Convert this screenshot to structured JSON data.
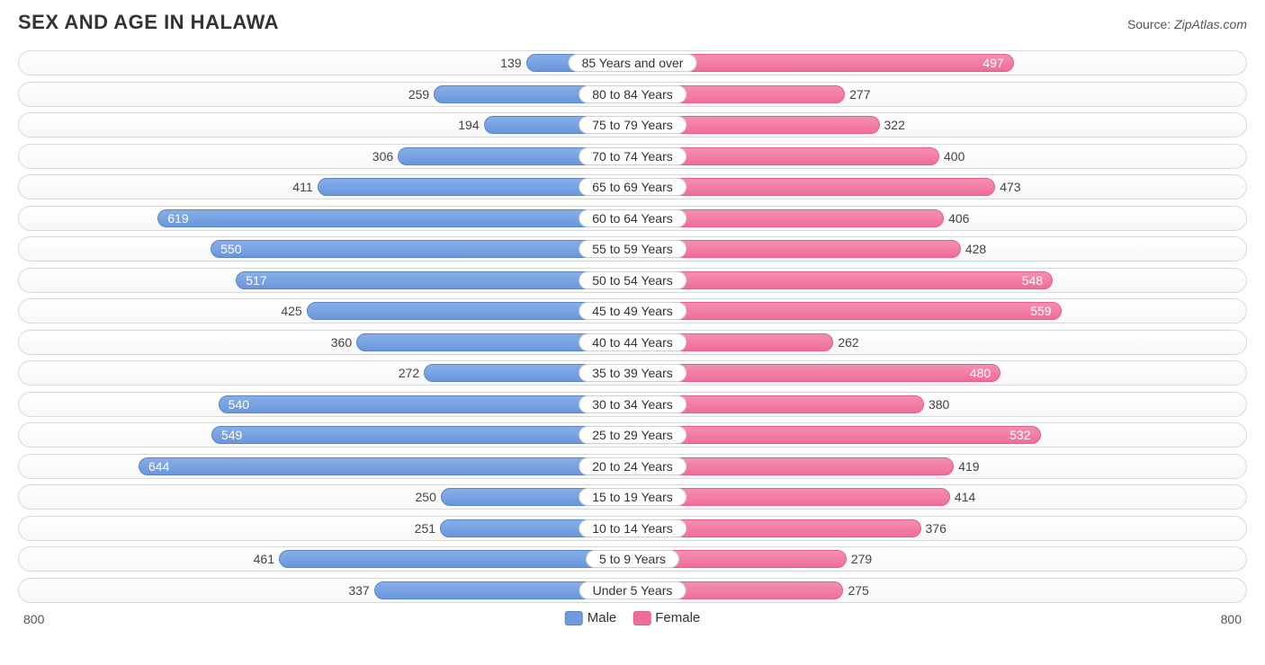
{
  "title": "SEX AND AGE IN HALAWA",
  "source_label": "Source:",
  "source_name": "ZipAtlas.com",
  "chart": {
    "type": "population-pyramid",
    "max_value": 800,
    "axis_label_left": "800",
    "axis_label_right": "800",
    "male_colors": {
      "fill_top": "#87aee8",
      "fill_bottom": "#6a97db",
      "border": "#5a86c9"
    },
    "female_colors": {
      "fill_top": "#f48fb1",
      "fill_bottom": "#ef6d9b",
      "border": "#e45f8e"
    },
    "track_border": "#d9d9d9",
    "inside_label_threshold": 480,
    "legend": {
      "male": "Male",
      "female": "Female"
    },
    "rows": [
      {
        "label": "85 Years and over",
        "male": 139,
        "female": 497
      },
      {
        "label": "80 to 84 Years",
        "male": 259,
        "female": 277
      },
      {
        "label": "75 to 79 Years",
        "male": 194,
        "female": 322
      },
      {
        "label": "70 to 74 Years",
        "male": 306,
        "female": 400
      },
      {
        "label": "65 to 69 Years",
        "male": 411,
        "female": 473
      },
      {
        "label": "60 to 64 Years",
        "male": 619,
        "female": 406
      },
      {
        "label": "55 to 59 Years",
        "male": 550,
        "female": 428
      },
      {
        "label": "50 to 54 Years",
        "male": 517,
        "female": 548
      },
      {
        "label": "45 to 49 Years",
        "male": 425,
        "female": 559
      },
      {
        "label": "40 to 44 Years",
        "male": 360,
        "female": 262
      },
      {
        "label": "35 to 39 Years",
        "male": 272,
        "female": 480
      },
      {
        "label": "30 to 34 Years",
        "male": 540,
        "female": 380
      },
      {
        "label": "25 to 29 Years",
        "male": 549,
        "female": 532
      },
      {
        "label": "20 to 24 Years",
        "male": 644,
        "female": 419
      },
      {
        "label": "15 to 19 Years",
        "male": 250,
        "female": 414
      },
      {
        "label": "10 to 14 Years",
        "male": 251,
        "female": 376
      },
      {
        "label": "5 to 9 Years",
        "male": 461,
        "female": 279
      },
      {
        "label": "Under 5 Years",
        "male": 337,
        "female": 275
      }
    ]
  }
}
